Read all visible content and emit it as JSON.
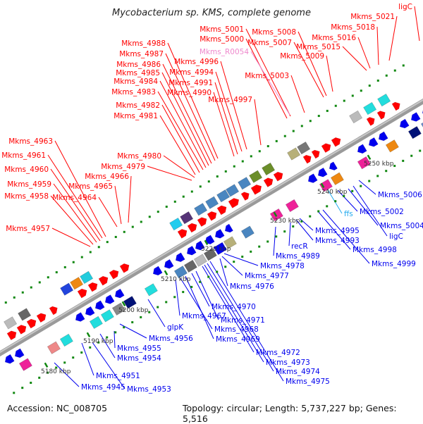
{
  "title": "Mycobacterium sp. KMS, complete genome",
  "footer": {
    "accession": "Accession: NC_008705",
    "topology": "Topology: circular; Length: 5,737,227 bp; Genes: 5,516"
  },
  "colors": {
    "forward": "#ff0000",
    "reverse": "#0000ee",
    "rna": "#ee88cc",
    "trna_reverse": "#22aaee",
    "backbone": "#999999",
    "tick": "#118811"
  },
  "kbp_ticks": [
    "5180 kbp",
    "5190 kbp",
    "5200 kbp",
    "5210 kbp",
    "5220 kbp",
    "5230 kbp",
    "5240 kbp",
    "5250 kbp"
  ],
  "labels_forward": [
    "Mkms_4957",
    "Mkms_4958",
    "Mkms_4959",
    "Mkms_4960",
    "Mkms_4961",
    "Mkms_4963",
    "Mkms_4964",
    "Mkms_4965",
    "Mkms_4966",
    "Mkms_4979",
    "Mkms_4980",
    "Mkms_4981",
    "Mkms_4982",
    "Mkms_4983",
    "Mkms_4984",
    "Mkms_4985",
    "Mkms_4986",
    "Mkms_4987",
    "Mkms_4988",
    "Mkms_4990",
    "Mkms_4991",
    "Mkms_4994",
    "Mkms_4996",
    "Mkms_4997",
    "Mkms_5000",
    "Mkms_5001",
    "Mkms_5003",
    "Mkms_5007",
    "Mkms_5008",
    "Mkms_5009",
    "Mkms_5015",
    "Mkms_5016",
    "Mkms_5018",
    "Mkms_5021",
    "ligC"
  ],
  "labels_rna_forward": [
    "Mkms_R0054"
  ],
  "labels_reverse": [
    "Mkms_4945",
    "Mkms_4951",
    "Mkms_4953",
    "Mkms_4954",
    "Mkms_4955",
    "Mkms_4956",
    "glpK",
    "Mkms_4967",
    "Mkms_4968",
    "Mkms_4969",
    "Mkms_4970",
    "Mkms_4971",
    "Mkms_4972",
    "Mkms_4973",
    "Mkms_4974",
    "Mkms_4975",
    "Mkms_4976",
    "Mkms_4977",
    "Mkms_4978",
    "Mkms_4989",
    "recR",
    "Mkms_4993",
    "Mkms_4995",
    "Mkms_4998",
    "Mkms_4999",
    "Mkms_5002",
    "Mkms_5004",
    "ligC",
    "Mkms_5006"
  ],
  "labels_rna_reverse": [
    "ffs"
  ]
}
